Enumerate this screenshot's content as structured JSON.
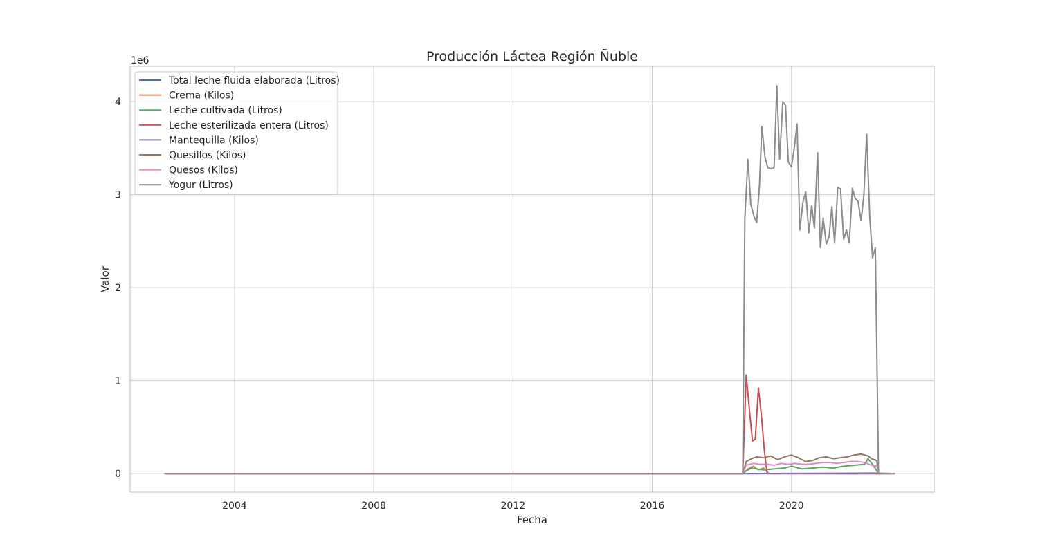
{
  "chart_data": {
    "type": "line",
    "title": "Producción Láctea Región Ñuble",
    "xlabel": "Fecha",
    "ylabel": "Valor",
    "y_scale_label": "1e6",
    "xlim": [
      2001.0,
      2024.1
    ],
    "ylim": [
      -0.2,
      4.38
    ],
    "x_ticks": [
      2004,
      2008,
      2012,
      2016,
      2020
    ],
    "y_ticks": [
      0,
      1,
      2,
      3,
      4
    ],
    "grid": true,
    "legend_position": "top-left",
    "series": [
      {
        "name": "Total leche fluida elaborada (Litros)",
        "color": "#4c72b0",
        "points": [
          [
            2002.0,
            0
          ],
          [
            2022.96,
            0
          ]
        ]
      },
      {
        "name": "Crema (Kilos)",
        "color": "#dd8452",
        "points": [
          [
            2002.0,
            0
          ],
          [
            2018.6,
            0
          ],
          [
            2018.75,
            0.05
          ],
          [
            2018.9,
            0.08
          ],
          [
            2019.05,
            0.04
          ],
          [
            2019.2,
            0.06
          ],
          [
            2019.35,
            0.0
          ],
          [
            2022.96,
            0
          ]
        ]
      },
      {
        "name": "Leche cultivada (Litros)",
        "color": "#55a868",
        "points": [
          [
            2002.0,
            0
          ],
          [
            2018.6,
            0
          ],
          [
            2018.7,
            0.03
          ],
          [
            2018.85,
            0.06
          ],
          [
            2019.0,
            0.05
          ],
          [
            2019.2,
            0.04
          ],
          [
            2019.5,
            0.05
          ],
          [
            2019.8,
            0.06
          ],
          [
            2020.0,
            0.08
          ],
          [
            2020.3,
            0.05
          ],
          [
            2020.6,
            0.06
          ],
          [
            2020.9,
            0.07
          ],
          [
            2021.2,
            0.06
          ],
          [
            2021.5,
            0.08
          ],
          [
            2021.8,
            0.09
          ],
          [
            2022.1,
            0.1
          ],
          [
            2022.2,
            0.16
          ],
          [
            2022.35,
            0.09
          ],
          [
            2022.5,
            0.0
          ],
          [
            2022.96,
            0
          ]
        ]
      },
      {
        "name": "Leche esterilizada entera (Litros)",
        "color": "#c44e52",
        "points": [
          [
            2002.0,
            0
          ],
          [
            2018.6,
            0
          ],
          [
            2018.7,
            1.06
          ],
          [
            2018.8,
            0.65
          ],
          [
            2018.88,
            0.35
          ],
          [
            2018.96,
            0.37
          ],
          [
            2019.05,
            0.92
          ],
          [
            2019.13,
            0.65
          ],
          [
            2019.22,
            0.25
          ],
          [
            2019.3,
            0.0
          ],
          [
            2022.96,
            0
          ]
        ]
      },
      {
        "name": "Mantequilla (Kilos)",
        "color": "#8172b3",
        "points": [
          [
            2002.0,
            0
          ],
          [
            2018.6,
            0
          ],
          [
            2022.5,
            0.005
          ],
          [
            2022.96,
            0
          ]
        ]
      },
      {
        "name": "Quesillos (Kilos)",
        "color": "#937860",
        "points": [
          [
            2002.0,
            0
          ],
          [
            2018.6,
            0
          ],
          [
            2018.7,
            0.13
          ],
          [
            2018.85,
            0.16
          ],
          [
            2019.0,
            0.18
          ],
          [
            2019.2,
            0.17
          ],
          [
            2019.4,
            0.19
          ],
          [
            2019.6,
            0.15
          ],
          [
            2019.8,
            0.18
          ],
          [
            2020.0,
            0.2
          ],
          [
            2020.2,
            0.17
          ],
          [
            2020.4,
            0.13
          ],
          [
            2020.6,
            0.14
          ],
          [
            2020.8,
            0.17
          ],
          [
            2021.0,
            0.18
          ],
          [
            2021.2,
            0.16
          ],
          [
            2021.4,
            0.17
          ],
          [
            2021.6,
            0.18
          ],
          [
            2021.8,
            0.2
          ],
          [
            2022.0,
            0.21
          ],
          [
            2022.2,
            0.19
          ],
          [
            2022.3,
            0.16
          ],
          [
            2022.45,
            0.14
          ],
          [
            2022.5,
            0.0
          ],
          [
            2022.96,
            0
          ]
        ]
      },
      {
        "name": "Quesos (Kilos)",
        "color": "#da8bc3",
        "points": [
          [
            2002.0,
            0
          ],
          [
            2018.6,
            0
          ],
          [
            2018.7,
            0.09
          ],
          [
            2018.9,
            0.11
          ],
          [
            2019.1,
            0.1
          ],
          [
            2019.3,
            0.1
          ],
          [
            2019.5,
            0.09
          ],
          [
            2019.7,
            0.11
          ],
          [
            2019.9,
            0.1
          ],
          [
            2020.1,
            0.11
          ],
          [
            2020.3,
            0.1
          ],
          [
            2020.5,
            0.1
          ],
          [
            2020.7,
            0.11
          ],
          [
            2020.9,
            0.12
          ],
          [
            2021.1,
            0.12
          ],
          [
            2021.3,
            0.11
          ],
          [
            2021.5,
            0.12
          ],
          [
            2021.7,
            0.13
          ],
          [
            2021.9,
            0.13
          ],
          [
            2022.1,
            0.12
          ],
          [
            2022.3,
            0.09
          ],
          [
            2022.45,
            0.08
          ],
          [
            2022.5,
            0.0
          ],
          [
            2022.96,
            0
          ]
        ]
      },
      {
        "name": "Yogur (Litros)",
        "color": "#8c8c8c",
        "points": [
          [
            2002.0,
            0
          ],
          [
            2018.6,
            0
          ],
          [
            2018.66,
            2.75
          ],
          [
            2018.75,
            3.38
          ],
          [
            2018.83,
            2.9
          ],
          [
            2018.92,
            2.77
          ],
          [
            2019.0,
            2.7
          ],
          [
            2019.08,
            3.1
          ],
          [
            2019.15,
            3.73
          ],
          [
            2019.24,
            3.4
          ],
          [
            2019.32,
            3.29
          ],
          [
            2019.41,
            3.28
          ],
          [
            2019.5,
            3.29
          ],
          [
            2019.58,
            4.17
          ],
          [
            2019.66,
            3.38
          ],
          [
            2019.75,
            4.0
          ],
          [
            2019.83,
            3.96
          ],
          [
            2019.91,
            3.35
          ],
          [
            2020.0,
            3.3
          ],
          [
            2020.08,
            3.5
          ],
          [
            2020.16,
            3.76
          ],
          [
            2020.24,
            2.62
          ],
          [
            2020.33,
            2.92
          ],
          [
            2020.41,
            3.03
          ],
          [
            2020.5,
            2.59
          ],
          [
            2020.58,
            2.88
          ],
          [
            2020.66,
            2.64
          ],
          [
            2020.75,
            3.45
          ],
          [
            2020.83,
            2.43
          ],
          [
            2020.91,
            2.75
          ],
          [
            2021.0,
            2.47
          ],
          [
            2021.08,
            2.55
          ],
          [
            2021.16,
            2.87
          ],
          [
            2021.24,
            2.48
          ],
          [
            2021.33,
            3.08
          ],
          [
            2021.41,
            3.06
          ],
          [
            2021.5,
            2.52
          ],
          [
            2021.58,
            2.62
          ],
          [
            2021.66,
            2.48
          ],
          [
            2021.75,
            3.07
          ],
          [
            2021.83,
            2.96
          ],
          [
            2021.91,
            2.93
          ],
          [
            2022.0,
            2.72
          ],
          [
            2022.08,
            3.0
          ],
          [
            2022.16,
            3.65
          ],
          [
            2022.25,
            2.75
          ],
          [
            2022.33,
            2.32
          ],
          [
            2022.41,
            2.43
          ],
          [
            2022.5,
            0.0
          ],
          [
            2022.96,
            0
          ]
        ]
      }
    ]
  }
}
